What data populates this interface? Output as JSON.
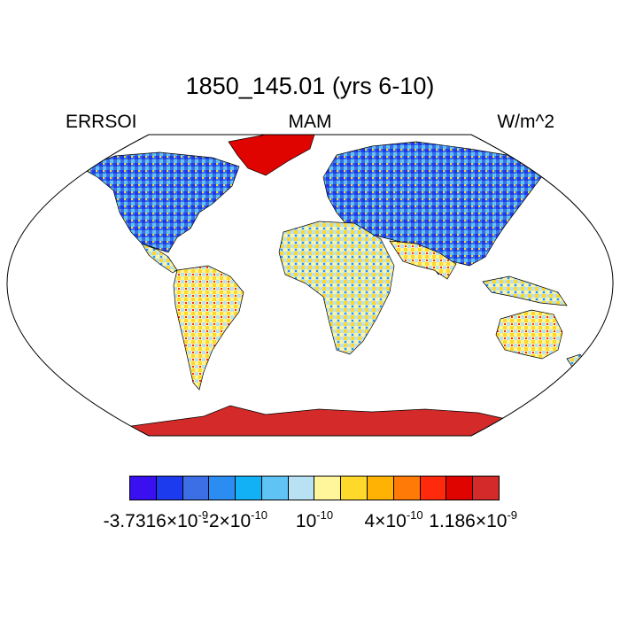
{
  "title": "1850_145.01 (yrs 6-10)",
  "left_label": "ERRSOI",
  "center_label": "MAM",
  "right_label": "W/m^2",
  "colorbar": {
    "colors": [
      "#3a10f0",
      "#1c3aee",
      "#3c6fe6",
      "#2b8cf2",
      "#12b1f6",
      "#5fc3f4",
      "#b8e1f3",
      "#fff59a",
      "#ffd82c",
      "#ffb203",
      "#ff7a07",
      "#ff2a0c",
      "#e00400",
      "#d42a2a"
    ],
    "tick_labels": [
      {
        "mantissa": "-3.7316×10",
        "exp": "-9"
      },
      {
        "mantissa": "-2×10",
        "exp": "-10"
      },
      {
        "mantissa": "10",
        "exp": "-10"
      },
      {
        "mantissa": "4×10",
        "exp": "-10"
      },
      {
        "mantissa": "1.186×10",
        "exp": "-9"
      }
    ]
  }
}
